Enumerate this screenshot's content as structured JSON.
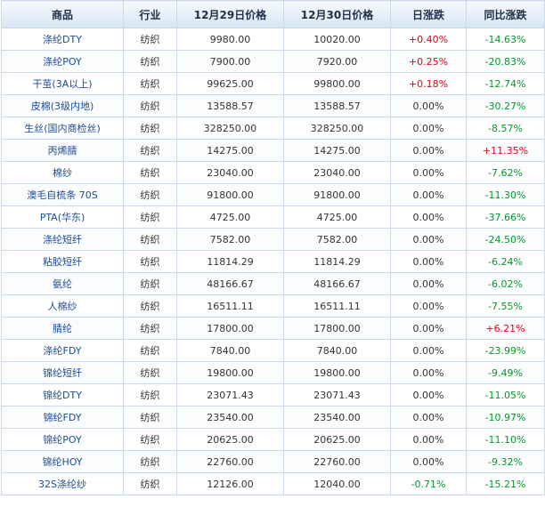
{
  "headers": [
    "商品",
    "行业",
    "12月29日价格",
    "12月30日价格",
    "日涨跌",
    "同比涨跌"
  ],
  "colors": {
    "up": "#e60012",
    "down": "#009a28",
    "name": "#1d4c93",
    "border": "#c9d8ea"
  },
  "rows": [
    {
      "name": "涤纶DTY",
      "industry": "纺织",
      "p1": "9980.00",
      "p2": "10020.00",
      "daily": "+0.40%",
      "yoy": "-14.63%"
    },
    {
      "name": "涤纶POY",
      "industry": "纺织",
      "p1": "7900.00",
      "p2": "7920.00",
      "daily": "+0.25%",
      "yoy": "-20.83%"
    },
    {
      "name": "干茧(3A以上)",
      "industry": "纺织",
      "p1": "99625.00",
      "p2": "99800.00",
      "daily": "+0.18%",
      "yoy": "-12.74%"
    },
    {
      "name": "皮棉(3级内地)",
      "industry": "纺织",
      "p1": "13588.57",
      "p2": "13588.57",
      "daily": "0.00%",
      "yoy": "-30.27%"
    },
    {
      "name": "生丝(国内商检丝)",
      "industry": "纺织",
      "p1": "328250.00",
      "p2": "328250.00",
      "daily": "0.00%",
      "yoy": "-8.57%"
    },
    {
      "name": "丙烯腈",
      "industry": "纺织",
      "p1": "14275.00",
      "p2": "14275.00",
      "daily": "0.00%",
      "yoy": "+11.35%"
    },
    {
      "name": "棉纱",
      "industry": "纺织",
      "p1": "23040.00",
      "p2": "23040.00",
      "daily": "0.00%",
      "yoy": "-7.62%"
    },
    {
      "name": "澳毛自梳条 70S",
      "industry": "纺织",
      "p1": "91800.00",
      "p2": "91800.00",
      "daily": "0.00%",
      "yoy": "-11.30%"
    },
    {
      "name": "PTA(华东)",
      "industry": "纺织",
      "p1": "4725.00",
      "p2": "4725.00",
      "daily": "0.00%",
      "yoy": "-37.66%"
    },
    {
      "name": "涤纶短纤",
      "industry": "纺织",
      "p1": "7582.00",
      "p2": "7582.00",
      "daily": "0.00%",
      "yoy": "-24.50%"
    },
    {
      "name": "粘胶短纤",
      "industry": "纺织",
      "p1": "11814.29",
      "p2": "11814.29",
      "daily": "0.00%",
      "yoy": "-6.24%"
    },
    {
      "name": "氨纶",
      "industry": "纺织",
      "p1": "48166.67",
      "p2": "48166.67",
      "daily": "0.00%",
      "yoy": "-6.02%"
    },
    {
      "name": "人棉纱",
      "industry": "纺织",
      "p1": "16511.11",
      "p2": "16511.11",
      "daily": "0.00%",
      "yoy": "-7.55%"
    },
    {
      "name": "腈纶",
      "industry": "纺织",
      "p1": "17800.00",
      "p2": "17800.00",
      "daily": "0.00%",
      "yoy": "+6.21%"
    },
    {
      "name": "涤纶FDY",
      "industry": "纺织",
      "p1": "7840.00",
      "p2": "7840.00",
      "daily": "0.00%",
      "yoy": "-23.99%"
    },
    {
      "name": "锦纶短纤",
      "industry": "纺织",
      "p1": "19800.00",
      "p2": "19800.00",
      "daily": "0.00%",
      "yoy": "-9.49%"
    },
    {
      "name": "锦纶DTY",
      "industry": "纺织",
      "p1": "23071.43",
      "p2": "23071.43",
      "daily": "0.00%",
      "yoy": "-11.05%"
    },
    {
      "name": "锦纶FDY",
      "industry": "纺织",
      "p1": "23540.00",
      "p2": "23540.00",
      "daily": "0.00%",
      "yoy": "-10.97%"
    },
    {
      "name": "锦纶POY",
      "industry": "纺织",
      "p1": "20625.00",
      "p2": "20625.00",
      "daily": "0.00%",
      "yoy": "-11.10%"
    },
    {
      "name": "锦纶HOY",
      "industry": "纺织",
      "p1": "22760.00",
      "p2": "22760.00",
      "daily": "0.00%",
      "yoy": "-9.32%"
    },
    {
      "name": "32S涤纶纱",
      "industry": "纺织",
      "p1": "12126.00",
      "p2": "12040.00",
      "daily": "-0.71%",
      "yoy": "-15.21%"
    }
  ]
}
